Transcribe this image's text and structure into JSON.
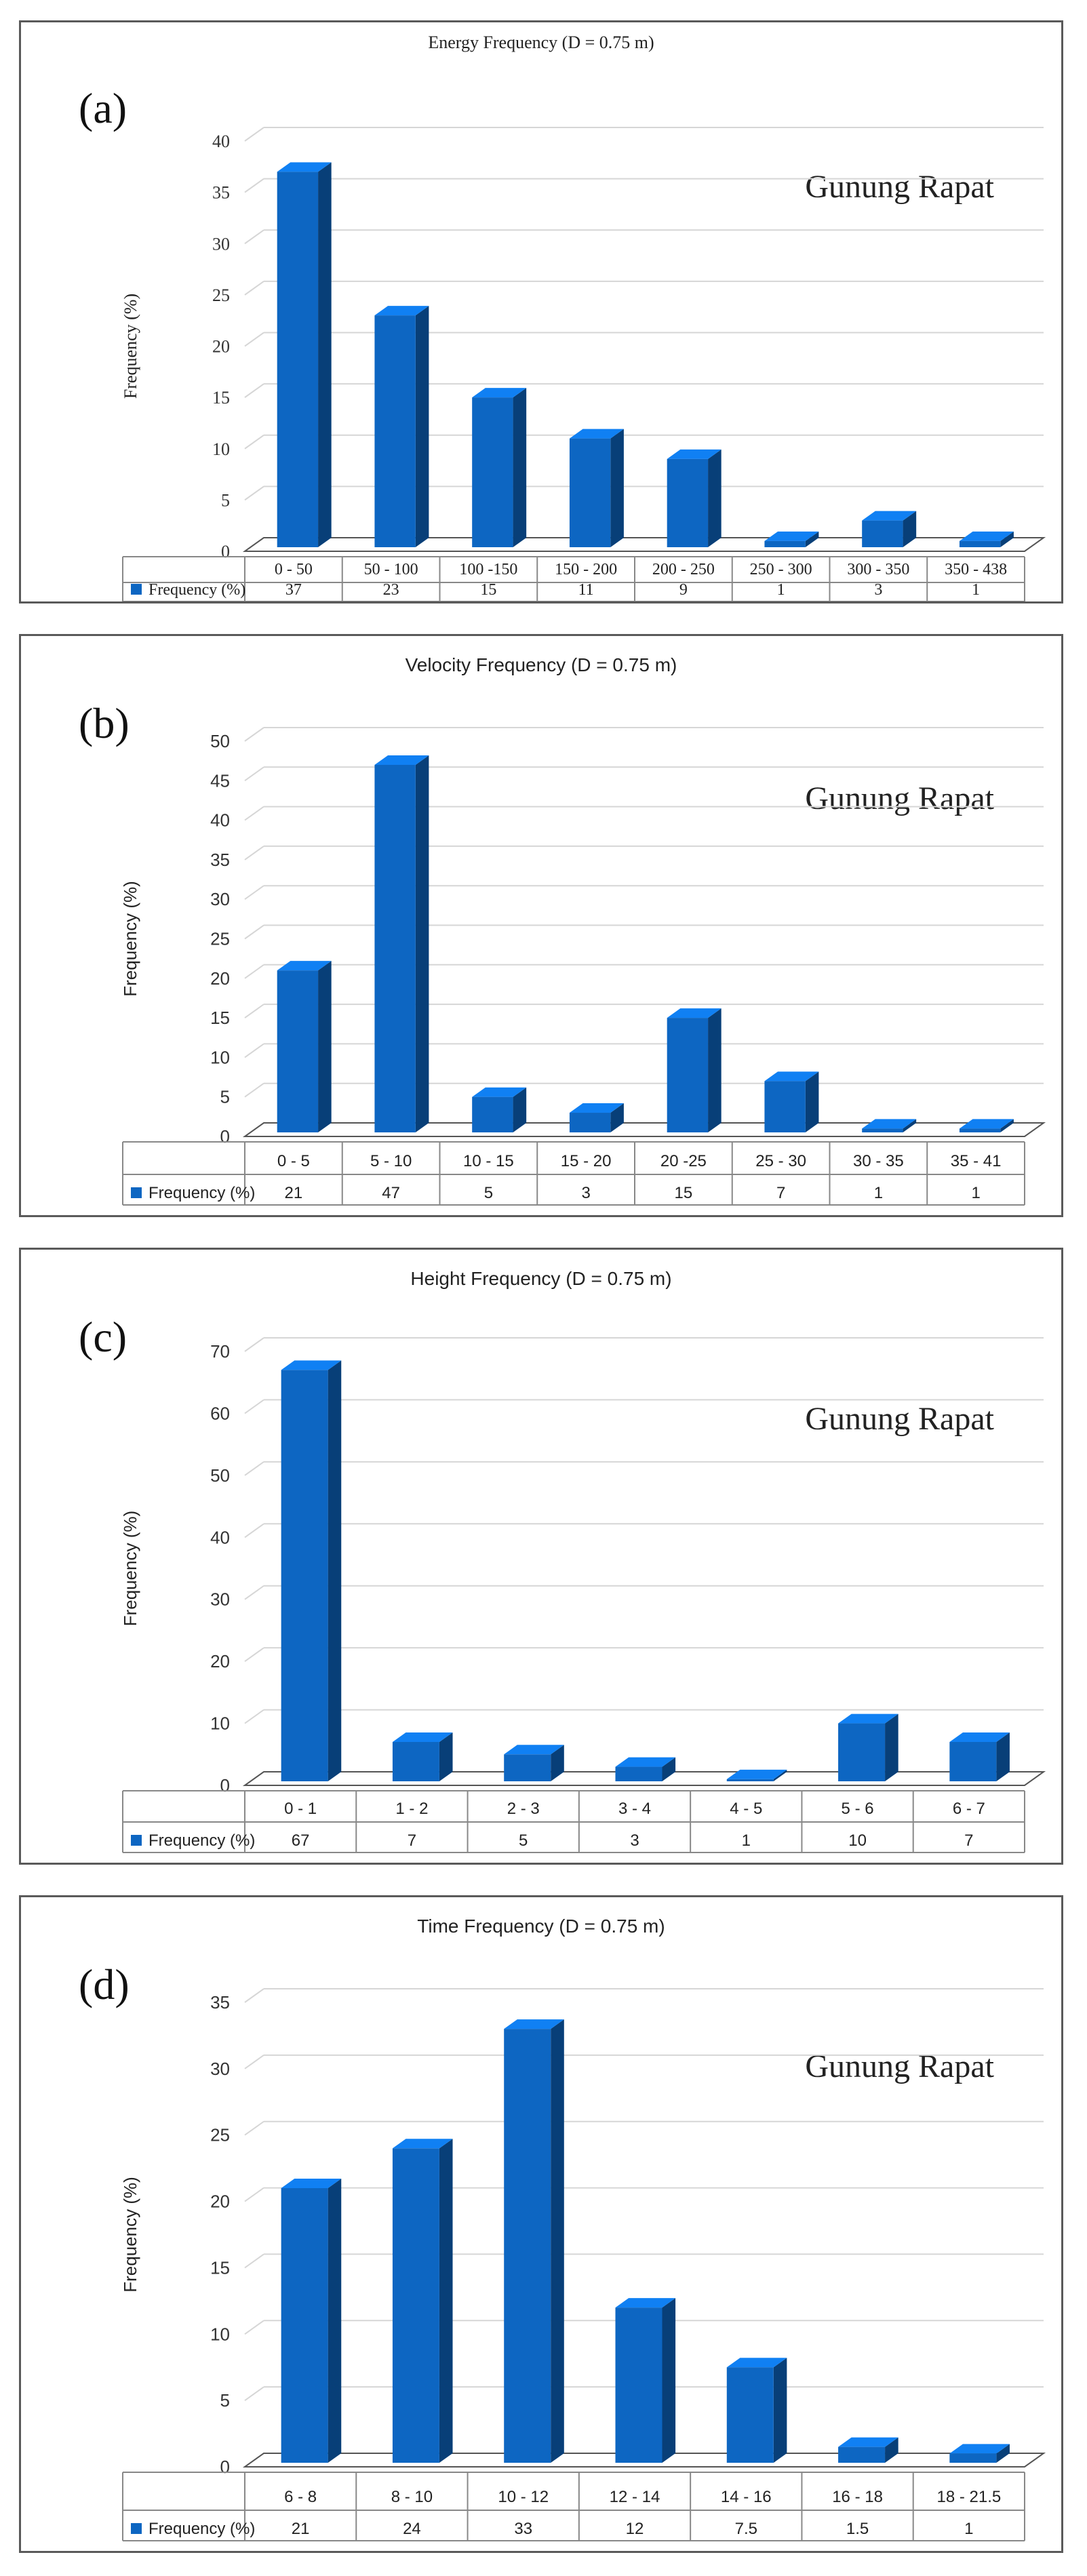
{
  "chart_data": [
    {
      "type": "bar",
      "panel_label": "(a)",
      "title": "Energy Frequency (D = 0.75 m)",
      "site_label": "Gunung Rapat",
      "ylabel": "Frequency (%)",
      "xlabel": "",
      "ylim": [
        0,
        40
      ],
      "ytick_step": 5,
      "yticks": [
        "0",
        "5",
        "10",
        "15",
        "20",
        "25",
        "30",
        "35",
        "40"
      ],
      "categories": [
        "0 - 50",
        "50 - 100",
        "100 -150",
        "150 - 200",
        "200 - 250",
        "250 - 300",
        "300 - 350",
        "350 - 438"
      ],
      "series": [
        {
          "name": "Frequency (%)",
          "values": [
            37,
            23,
            15,
            11,
            9,
            1,
            3,
            1
          ]
        }
      ],
      "table_values": [
        "37",
        "23",
        "15",
        "11",
        "9",
        "1",
        "3",
        "1"
      ],
      "color": "#0d66c2",
      "font": "serif"
    },
    {
      "type": "bar",
      "panel_label": "(b)",
      "title": "Velocity Frequency (D = 0.75 m)",
      "site_label": "Gunung Rapat",
      "ylabel": "Frequency (%)",
      "xlabel": "",
      "ylim": [
        0,
        50
      ],
      "ytick_step": 5,
      "yticks": [
        "0",
        "5",
        "10",
        "15",
        "20",
        "25",
        "30",
        "35",
        "40",
        "45",
        "50"
      ],
      "categories": [
        "0 - 5",
        "5 - 10",
        "10 - 15",
        "15 - 20",
        "20 -25",
        "25 - 30",
        "30 - 35",
        "35 - 41"
      ],
      "series": [
        {
          "name": "Frequency (%)",
          "values": [
            21,
            47,
            5,
            3,
            15,
            7,
            1,
            1
          ]
        }
      ],
      "table_values": [
        "21",
        "47",
        "5",
        "3",
        "15",
        "7",
        "1",
        "1"
      ],
      "color": "#0d66c2",
      "font": "sans"
    },
    {
      "type": "bar",
      "panel_label": "(c)",
      "title": "Height Frequency (D = 0.75 m)",
      "site_label": "Gunung Rapat",
      "ylabel": "Frequency (%)",
      "xlabel": "",
      "ylim": [
        0,
        70
      ],
      "ytick_step": 10,
      "yticks": [
        "0",
        "10",
        "20",
        "30",
        "40",
        "50",
        "60",
        "70"
      ],
      "categories": [
        "0 - 1",
        "1 - 2",
        "2 - 3",
        "3 - 4",
        "4 - 5",
        "5 - 6",
        "6 - 7"
      ],
      "series": [
        {
          "name": "Frequency (%)",
          "values": [
            67,
            7,
            5,
            3,
            1,
            10,
            7
          ]
        }
      ],
      "table_values": [
        "67",
        "7",
        "5",
        "3",
        "1",
        "10",
        "7"
      ],
      "color": "#0d66c2",
      "font": "sans"
    },
    {
      "type": "bar",
      "panel_label": "(d)",
      "title": "Time Frequency (D = 0.75 m)",
      "site_label": "Gunung Rapat",
      "ylabel": "Frequency (%)",
      "xlabel": "",
      "ylim": [
        0,
        35
      ],
      "ytick_step": 5,
      "yticks": [
        "0",
        "5",
        "10",
        "15",
        "20",
        "25",
        "30",
        "35"
      ],
      "categories": [
        "6 - 8",
        "8 - 10",
        "10 - 12",
        "12 - 14",
        "14 - 16",
        "16 - 18",
        "18 - 21.5"
      ],
      "series": [
        {
          "name": "Frequency (%)",
          "values": [
            21,
            24,
            33,
            12,
            7.5,
            1.5,
            1
          ]
        }
      ],
      "table_values": [
        "21",
        "24",
        "33",
        "12",
        "7.5",
        "1.5",
        "1"
      ],
      "color": "#0d66c2",
      "font": "sans"
    }
  ]
}
